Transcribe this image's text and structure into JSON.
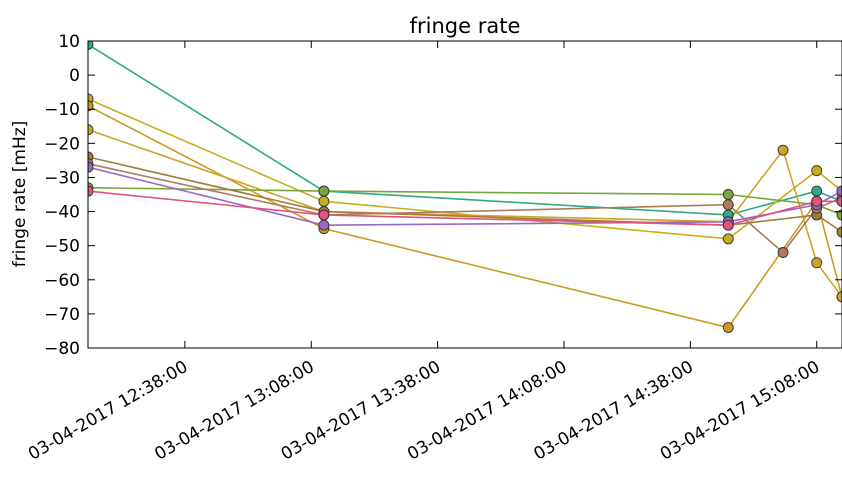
{
  "chart_data": {
    "type": "scatter",
    "title": "fringe rate",
    "xlabel": "",
    "ylabel": "fringe rate [mHz]",
    "ylim": [
      -80,
      10
    ],
    "yticks": [
      10,
      0,
      -10,
      -20,
      -30,
      -40,
      -50,
      -60,
      -70,
      -80
    ],
    "ytick_labels": [
      "10",
      "0",
      "−10",
      "−20",
      "−30",
      "−40",
      "−50",
      "−60",
      "−70",
      "−80"
    ],
    "xlim": [
      "03-04-2017 12:15:00",
      "03-04-2017 15:14:00"
    ],
    "xticks": [
      "03-04-2017 12:38:00",
      "03-04-2017 13:08:00",
      "03-04-2017 13:38:00",
      "03-04-2017 14:08:00",
      "03-04-2017 14:38:00",
      "03-04-2017 15:08:00"
    ],
    "grid": false,
    "legend": "none",
    "marker_edge_color": "#333333",
    "series": [
      {
        "color": "#2eaa85",
        "x": [
          "03-04-2017 12:15:00",
          "03-04-2017 13:11:00",
          "03-04-2017 14:47:00",
          "03-04-2017 15:08:00",
          "03-04-2017 15:14:00"
        ],
        "y": [
          9,
          -34,
          -41,
          -34,
          -37
        ]
      },
      {
        "color": "#c9ad1c",
        "x": [
          "03-04-2017 12:15:00",
          "03-04-2017 13:11:00",
          "03-04-2017 14:47:00",
          "03-04-2017 15:08:00",
          "03-04-2017 15:14:00"
        ],
        "y": [
          -7,
          -37,
          -48,
          -28,
          -34
        ]
      },
      {
        "color": "#cc9a20",
        "x": [
          "03-04-2017 12:15:00",
          "03-04-2017 13:11:00",
          "03-04-2017 14:47:00",
          "03-04-2017 15:08:00",
          "03-04-2017 15:14:00"
        ],
        "y": [
          -9,
          -45,
          -74,
          -37,
          -65
        ]
      },
      {
        "color": "#cca42c",
        "x": [
          "03-04-2017 12:15:00",
          "03-04-2017 13:11:00",
          "03-04-2017 14:47:00",
          "03-04-2017 15:00:00",
          "03-04-2017 15:08:00",
          "03-04-2017 15:14:00"
        ],
        "y": [
          -16,
          -40,
          -43,
          -22,
          -55,
          -65
        ]
      },
      {
        "color": "#77a63c",
        "x": [
          "03-04-2017 12:15:00",
          "03-04-2017 13:11:00",
          "03-04-2017 14:47:00",
          "03-04-2017 15:08:00",
          "03-04-2017 15:14:00"
        ],
        "y": [
          -33,
          -34,
          -35,
          -38,
          -41
        ]
      },
      {
        "color": "#a07e3a",
        "x": [
          "03-04-2017 12:15:00",
          "03-04-2017 13:11:00",
          "03-04-2017 14:47:00",
          "03-04-2017 15:08:00",
          "03-04-2017 15:14:00"
        ],
        "y": [
          -24,
          -40,
          -44,
          -41,
          -46
        ]
      },
      {
        "color": "#ad7a5c",
        "x": [
          "03-04-2017 12:15:00",
          "03-04-2017 13:11:00",
          "03-04-2017 14:47:00",
          "03-04-2017 15:00:00",
          "03-04-2017 15:08:00",
          "03-04-2017 15:14:00"
        ],
        "y": [
          -26,
          -41,
          -38,
          -52,
          -39,
          -36
        ]
      },
      {
        "color": "#9b67c4",
        "x": [
          "03-04-2017 12:15:00",
          "03-04-2017 13:11:00",
          "03-04-2017 14:47:00",
          "03-04-2017 15:08:00",
          "03-04-2017 15:14:00"
        ],
        "y": [
          -27,
          -44,
          -43,
          -38,
          -34
        ]
      },
      {
        "color": "#e0537f",
        "x": [
          "03-04-2017 12:15:00",
          "03-04-2017 13:11:00",
          "03-04-2017 14:47:00",
          "03-04-2017 15:08:00",
          "03-04-2017 15:14:00"
        ],
        "y": [
          -34,
          -41,
          -44,
          -37,
          -37
        ]
      }
    ]
  }
}
